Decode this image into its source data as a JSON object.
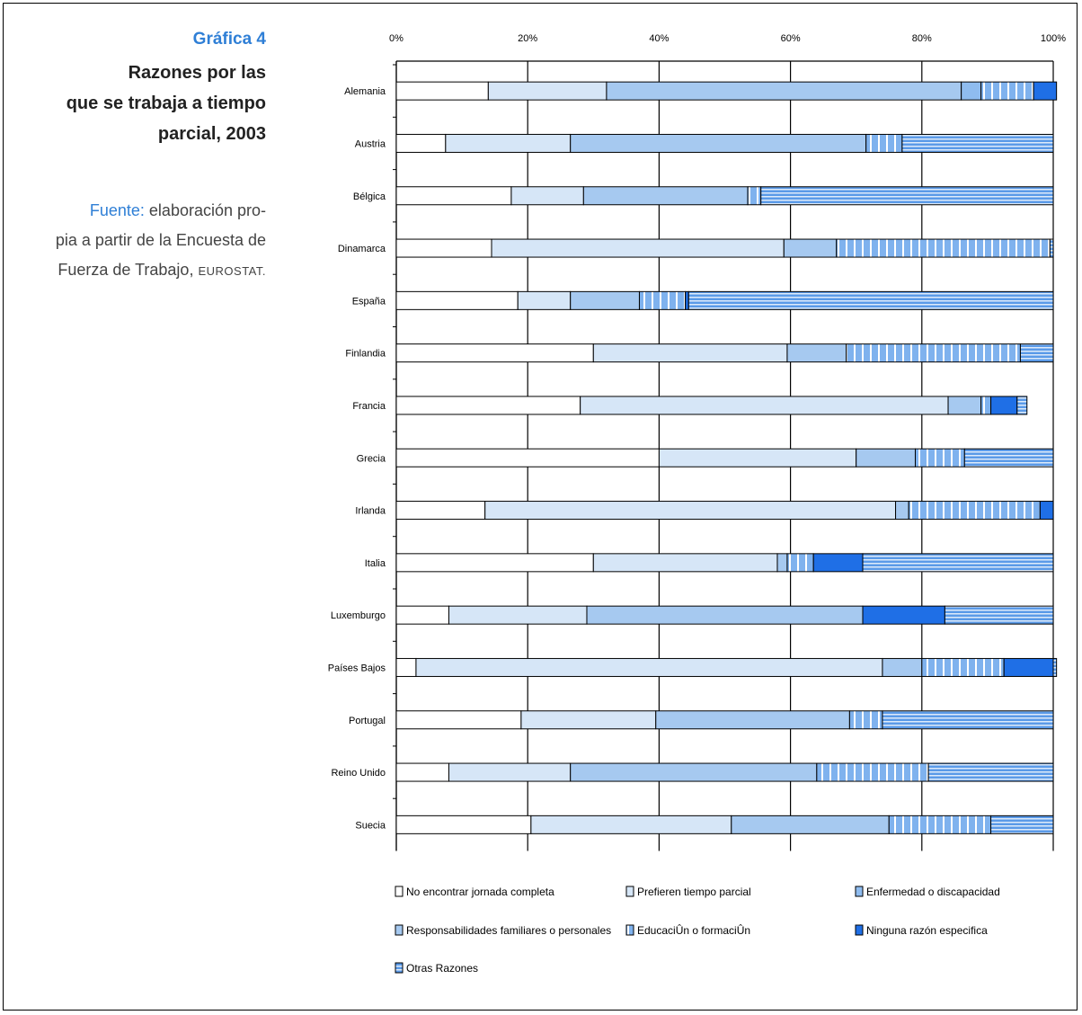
{
  "figure": {
    "label": "Gráfica 4",
    "title_lines": [
      "Razones por las",
      "que se trabaja a tiempo",
      "parcial, 2003"
    ],
    "source_label": "Fuente:",
    "source_lines": [
      "elaboración pro-",
      "pia a partir de la Encuesta de",
      "Fuerza de Trabajo,"
    ],
    "source_org": "EUROSTAT."
  },
  "chart_data": {
    "type": "bar",
    "orientation": "horizontal",
    "stacked": true,
    "x_unit": "percent",
    "xlim": [
      0,
      100
    ],
    "x_ticks": [
      0,
      20,
      40,
      60,
      80,
      100
    ],
    "x_tick_labels": [
      "0%",
      "20%",
      "40%",
      "60%",
      "80%",
      "100%"
    ],
    "grid": "vertical",
    "legend_position": "bottom",
    "categories": [
      "Alemania",
      "Austria",
      "Bélgica",
      "Dinamarca",
      "España",
      "Finlandia",
      "Francia",
      "Grecia",
      "Irlanda",
      "Italia",
      "Luxemburgo",
      "Países Bajos",
      "Portugal",
      "Reino Unido",
      "Suecia"
    ],
    "series": [
      {
        "name": "No encontrar jornada completa",
        "color": "#ffffff",
        "pattern": "solid",
        "values": [
          14,
          7.5,
          17.5,
          14.5,
          18.5,
          30,
          28,
          40,
          13.5,
          30,
          8,
          3,
          19,
          8,
          20.5
        ]
      },
      {
        "name": "Prefieren tiempo parcial",
        "color": "#d6e6f7",
        "pattern": "solid",
        "values": [
          18,
          19,
          11,
          44.5,
          8,
          29.5,
          56,
          30,
          62.5,
          28,
          21,
          71,
          20.5,
          18.5,
          30.5
        ]
      },
      {
        "name": "Responsabilidades familiares o personales",
        "color": "#a6c9f0",
        "pattern": "solid",
        "values": [
          54,
          45,
          25,
          8,
          10.5,
          9,
          5,
          9,
          2,
          1.5,
          42,
          6,
          29.5,
          37.5,
          24
        ]
      },
      {
        "name": "Enfermedad o discapacidad",
        "color": "#8fbcef",
        "pattern": "solid",
        "values": [
          3,
          0,
          0,
          0,
          0,
          0,
          0,
          0,
          0,
          0,
          0,
          0,
          0,
          0,
          0
        ]
      },
      {
        "name": "Educación o formación",
        "color": "#7fb2ee",
        "pattern": "vstripes",
        "values": [
          8,
          5.5,
          2,
          32.5,
          7,
          26.5,
          1.5,
          7.5,
          20,
          4,
          0,
          12.5,
          5,
          17,
          15.5
        ]
      },
      {
        "name": "Ninguna razón específica",
        "color": "#1f6fe6",
        "pattern": "solid",
        "values": [
          3.5,
          0,
          0,
          0,
          0.5,
          0,
          4,
          0,
          2,
          7.5,
          12.5,
          7.5,
          0,
          0,
          0
        ]
      },
      {
        "name": "Otras Razones",
        "color": "#5a9ae8",
        "pattern": "hstripes",
        "values": [
          0,
          23,
          44.5,
          0.5,
          55.5,
          5,
          1.5,
          13.5,
          0,
          29,
          16.5,
          0.5,
          26,
          19,
          9.5
        ]
      }
    ]
  },
  "legend": {
    "items": [
      {
        "label": "No encontrar jornada completa",
        "series": 0
      },
      {
        "label": "Prefieren tiempo parcial",
        "series": 1
      },
      {
        "label": "Enfermedad o discapacidad",
        "series": 3
      },
      {
        "label": "Responsabilidades familiares o personales",
        "series": 2
      },
      {
        "label": "EducaciÛn o formaciÛn",
        "series": 4
      },
      {
        "label": "Ninguna razón especifica",
        "series": 5
      },
      {
        "label": "Otras Razones",
        "series": 6
      }
    ]
  }
}
